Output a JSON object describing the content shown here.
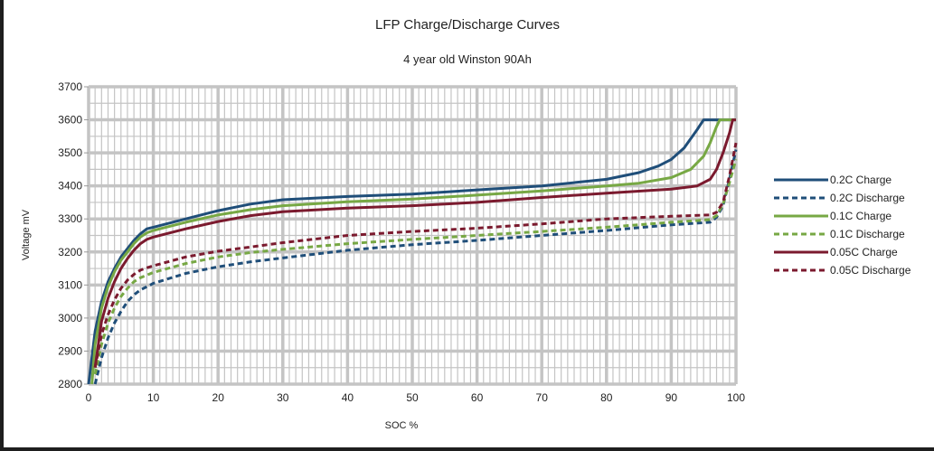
{
  "chart_data": {
    "type": "line",
    "title": "LFP Charge/Discharge Curves",
    "subtitle": "4 year old Winston 90Ah",
    "xlabel": "SOC %",
    "ylabel": "Voltage mV",
    "xlim": [
      0,
      100
    ],
    "ylim": [
      2800,
      3700
    ],
    "xticks": [
      "0",
      "10",
      "20",
      "30",
      "40",
      "50",
      "60",
      "70",
      "80",
      "90",
      "100"
    ],
    "yticks": [
      "2800",
      "2900",
      "3000",
      "3100",
      "3200",
      "3300",
      "3400",
      "3500",
      "3600",
      "3700"
    ],
    "grid": true,
    "legend_position": "right",
    "series": [
      {
        "name": "0.2C Charge",
        "color": "#1f4e79",
        "dash": false,
        "x": [
          0,
          1,
          2,
          3,
          4,
          5,
          6,
          7,
          8,
          9,
          10,
          15,
          20,
          25,
          30,
          40,
          50,
          60,
          70,
          80,
          85,
          88,
          90,
          92,
          94,
          95,
          100
        ],
        "y": [
          2800,
          2960,
          3050,
          3110,
          3150,
          3185,
          3210,
          3235,
          3255,
          3270,
          3275,
          3300,
          3325,
          3345,
          3358,
          3368,
          3375,
          3388,
          3400,
          3420,
          3440,
          3460,
          3480,
          3515,
          3570,
          3600,
          3600
        ]
      },
      {
        "name": "0.2C Discharge",
        "color": "#1f4e79",
        "dash": true,
        "x": [
          1,
          2,
          3,
          4,
          5,
          6,
          7,
          8,
          9,
          10,
          15,
          20,
          25,
          30,
          40,
          50,
          60,
          70,
          80,
          90,
          96,
          97,
          98,
          99,
          100
        ],
        "y": [
          2800,
          2880,
          2940,
          2985,
          3020,
          3050,
          3070,
          3085,
          3095,
          3105,
          3135,
          3155,
          3170,
          3182,
          3205,
          3222,
          3235,
          3250,
          3265,
          3282,
          3290,
          3305,
          3340,
          3420,
          3510
        ]
      },
      {
        "name": "0.1C Charge",
        "color": "#77a844",
        "dash": false,
        "x": [
          0.5,
          1,
          2,
          3,
          4,
          5,
          6,
          7,
          8,
          9,
          10,
          15,
          20,
          25,
          30,
          40,
          50,
          60,
          70,
          80,
          85,
          90,
          93,
          95,
          96,
          97,
          97.5,
          100
        ],
        "y": [
          2800,
          2920,
          3030,
          3095,
          3140,
          3175,
          3200,
          3225,
          3245,
          3258,
          3265,
          3290,
          3312,
          3328,
          3340,
          3352,
          3360,
          3372,
          3385,
          3400,
          3408,
          3425,
          3450,
          3490,
          3530,
          3580,
          3600,
          3600
        ]
      },
      {
        "name": "0.1C Discharge",
        "color": "#77a844",
        "dash": true,
        "x": [
          1,
          2,
          3,
          4,
          5,
          6,
          7,
          8,
          9,
          10,
          15,
          20,
          25,
          30,
          40,
          50,
          60,
          70,
          80,
          90,
          96,
          97,
          98,
          99,
          100
        ],
        "y": [
          2830,
          2920,
          2985,
          3030,
          3065,
          3090,
          3110,
          3122,
          3130,
          3138,
          3165,
          3185,
          3198,
          3208,
          3225,
          3238,
          3250,
          3262,
          3275,
          3290,
          3298,
          3310,
          3345,
          3410,
          3480
        ]
      },
      {
        "name": "0.05C Charge",
        "color": "#7b1a2e",
        "dash": false,
        "x": [
          1,
          2,
          3,
          4,
          5,
          6,
          7,
          8,
          9,
          10,
          15,
          20,
          25,
          30,
          40,
          50,
          60,
          70,
          80,
          90,
          94,
          96,
          97,
          98,
          99,
          99.5,
          100
        ],
        "y": [
          2850,
          2990,
          3060,
          3110,
          3150,
          3180,
          3205,
          3225,
          3238,
          3245,
          3270,
          3292,
          3310,
          3322,
          3333,
          3340,
          3350,
          3365,
          3378,
          3390,
          3400,
          3420,
          3450,
          3500,
          3560,
          3600,
          3600
        ]
      },
      {
        "name": "0.05C Discharge",
        "color": "#7b1a2e",
        "dash": true,
        "x": [
          1,
          2,
          3,
          4,
          5,
          6,
          7,
          8,
          9,
          10,
          15,
          20,
          25,
          30,
          40,
          50,
          60,
          70,
          80,
          90,
          96,
          97,
          98,
          99,
          100
        ],
        "y": [
          2850,
          2950,
          3010,
          3055,
          3090,
          3115,
          3132,
          3145,
          3152,
          3158,
          3185,
          3202,
          3215,
          3228,
          3250,
          3262,
          3272,
          3285,
          3300,
          3308,
          3312,
          3320,
          3350,
          3430,
          3530
        ]
      }
    ]
  }
}
